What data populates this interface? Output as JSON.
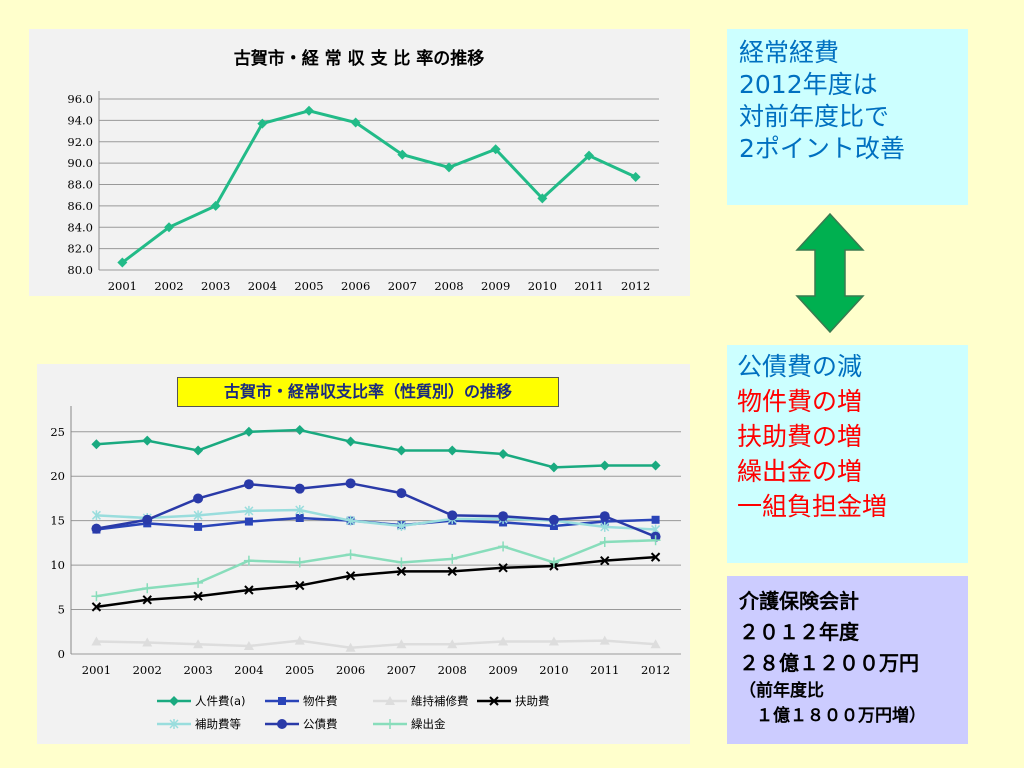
{
  "chart_data": [
    {
      "type": "line",
      "title": "古賀市・経 常 収 支 比 率の推移",
      "categories": [
        "2001",
        "2002",
        "2003",
        "2004",
        "2005",
        "2006",
        "2007",
        "2008",
        "2009",
        "2010",
        "2011",
        "2012"
      ],
      "series": [
        {
          "values": [
            80.7,
            84.0,
            86.0,
            93.7,
            94.9,
            93.8,
            90.8,
            89.6,
            91.3,
            86.7,
            90.7,
            88.7
          ],
          "color": "#22bb88"
        }
      ],
      "yticks": [
        "80.0",
        "82.0",
        "84.0",
        "86.0",
        "88.0",
        "90.0",
        "92.0",
        "94.0",
        "96.0"
      ],
      "ylim": [
        80,
        96
      ],
      "grid": true,
      "legend": "none"
    },
    {
      "type": "line",
      "title": "古賀市・経常収支比率（性質別）の推移",
      "categories": [
        "2001",
        "2002",
        "2003",
        "2004",
        "2005",
        "2006",
        "2007",
        "2008",
        "2009",
        "2010",
        "2011",
        "2012"
      ],
      "series": [
        {
          "name": "人件費(a)",
          "values": [
            23.6,
            24.0,
            22.9,
            25.0,
            25.2,
            23.9,
            22.9,
            22.9,
            22.5,
            21.0,
            21.2,
            21.2
          ],
          "color": "#1aaa80",
          "marker": "diamond"
        },
        {
          "name": "物件費",
          "values": [
            14.0,
            14.7,
            14.3,
            14.9,
            15.3,
            15.0,
            14.5,
            15.0,
            14.8,
            14.4,
            14.9,
            15.1
          ],
          "color": "#2a44b8",
          "marker": "square"
        },
        {
          "name": "維持補修費",
          "values": [
            1.4,
            1.3,
            1.1,
            0.9,
            1.5,
            0.7,
            1.1,
            1.1,
            1.4,
            1.4,
            1.5,
            1.1
          ],
          "color": "#dddddd",
          "marker": "triangle"
        },
        {
          "name": "扶助費",
          "values": [
            5.3,
            6.1,
            6.5,
            7.2,
            7.7,
            8.8,
            9.3,
            9.3,
            9.7,
            9.9,
            10.5,
            10.9
          ],
          "color": "#000000",
          "marker": "x"
        },
        {
          "name": "補助費等",
          "values": [
            15.6,
            15.3,
            15.6,
            16.1,
            16.2,
            15.0,
            14.4,
            15.2,
            15.2,
            15.0,
            14.3,
            14.0
          ],
          "color": "#99dddd",
          "marker": "asterisk"
        },
        {
          "name": "公債費",
          "values": [
            14.1,
            15.1,
            17.5,
            19.1,
            18.6,
            19.2,
            18.1,
            15.6,
            15.5,
            15.1,
            15.5,
            13.2
          ],
          "color": "#2a3aa8",
          "marker": "circle"
        },
        {
          "name": "繰出金",
          "values": [
            6.5,
            7.4,
            8.0,
            10.5,
            10.3,
            11.2,
            10.3,
            10.7,
            12.1,
            10.3,
            12.6,
            12.8
          ],
          "color": "#88ddbb",
          "marker": "plus"
        }
      ],
      "yticks": [
        "0",
        "5",
        "10",
        "15",
        "20",
        "25"
      ],
      "ylim": [
        0,
        27
      ],
      "grid": true,
      "legend": "bottom"
    }
  ],
  "boxes": {
    "top": {
      "lines": [
        "経常経費",
        "2012年度は",
        "対前年度比で",
        "2ポイント改善"
      ]
    },
    "middle": {
      "lines": [
        {
          "text": "公債費の減",
          "color": "#0070c0"
        },
        {
          "text": "物件費の増",
          "color": "#ff0000"
        },
        {
          "text": "扶助費の増",
          "color": "#ff0000"
        },
        {
          "text": "繰出金の増",
          "color": "#ff0000"
        },
        {
          "text": "一組負担金増",
          "color": "#ff0000"
        }
      ]
    },
    "bottom": {
      "lines": [
        "介護保険会計",
        "２０１２年度",
        "２８億１２００万円"
      ],
      "note1": "（前年度比",
      "note2": "　１億１８００万円増）"
    }
  },
  "colors": {
    "background": "#ffffcc",
    "accent_box": "#ccffff",
    "note_box": "#ccccff",
    "arrow": "#00b050"
  },
  "icons": {
    "arrow": "double-headed-vertical-arrow"
  }
}
